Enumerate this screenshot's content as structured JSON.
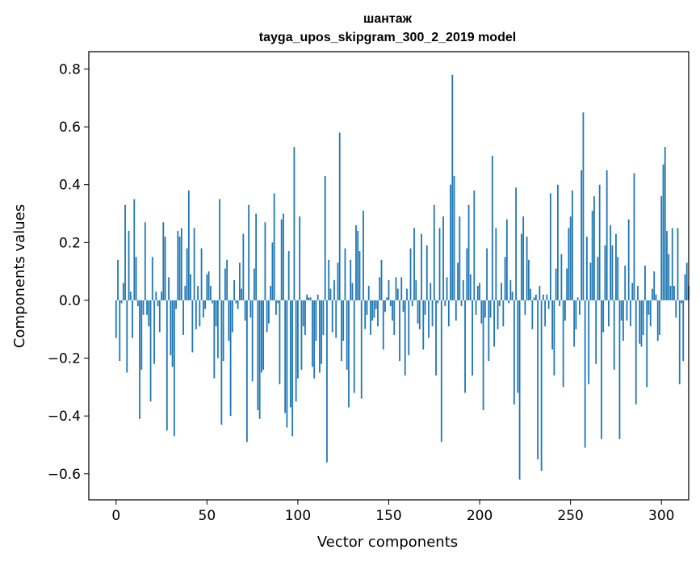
{
  "chart_data": {
    "type": "bar",
    "title": "шантаж",
    "subtitle": "tayga_upos_skipgram_300_2_2019 model",
    "xlabel": "Vector components",
    "ylabel": "Components values",
    "xlim": [
      -15,
      315
    ],
    "ylim": [
      -0.69,
      0.86
    ],
    "xticks": [
      0,
      50,
      100,
      150,
      200,
      250,
      300
    ],
    "yticks": [
      -0.6,
      -0.4,
      -0.2,
      0.0,
      0.2,
      0.4,
      0.6,
      0.8
    ],
    "ytick_labels": [
      "−0.6",
      "−0.4",
      "−0.2",
      "0.0",
      "0.2",
      "0.4",
      "0.6",
      "0.8"
    ],
    "bar_color": "#1f77b4",
    "grid": false,
    "values": [
      -0.13,
      0.14,
      -0.21,
      -0.01,
      0.06,
      0.33,
      -0.25,
      0.24,
      0.03,
      -0.13,
      0.35,
      0.15,
      -0.02,
      -0.41,
      -0.24,
      -0.05,
      0.27,
      -0.05,
      -0.09,
      -0.35,
      0.15,
      -0.22,
      0.03,
      -0.02,
      -0.11,
      0.03,
      0.27,
      0.22,
      -0.45,
      0.08,
      -0.19,
      -0.23,
      -0.47,
      -0.03,
      0.24,
      0.22,
      0.25,
      -0.12,
      0.05,
      0.18,
      0.38,
      0.09,
      -0.18,
      0.25,
      -0.1,
      0.05,
      -0.09,
      0.18,
      -0.06,
      -0.03,
      0.09,
      0.1,
      0.05,
      -0.01,
      -0.27,
      -0.09,
      -0.2,
      0.35,
      -0.43,
      -0.21,
      0.11,
      0.14,
      -0.14,
      -0.4,
      -0.11,
      0.07,
      -0.01,
      -0.03,
      0.13,
      0.04,
      0.23,
      -0.07,
      -0.49,
      0.33,
      -0.06,
      -0.28,
      0.11,
      0.3,
      -0.38,
      -0.41,
      -0.25,
      -0.24,
      0.27,
      -0.11,
      -0.08,
      0.05,
      0.2,
      0.37,
      -0.05,
      -0.01,
      -0.29,
      0.28,
      0.3,
      -0.39,
      -0.44,
      0.17,
      -0.37,
      -0.47,
      0.53,
      -0.35,
      -0.27,
      0.29,
      -0.24,
      -0.09,
      -0.12,
      0.02,
      0.01,
      0.01,
      -0.23,
      -0.27,
      -0.14,
      0.02,
      -0.25,
      -0.22,
      -0.12,
      0.43,
      -0.56,
      0.14,
      0.04,
      -0.11,
      0.07,
      -0.13,
      0.13,
      0.58,
      -0.21,
      -0.14,
      0.18,
      -0.24,
      -0.37,
      0.14,
      0.06,
      -0.32,
      0.26,
      0.24,
      0.17,
      -0.34,
      0.31,
      -0.1,
      -0.05,
      0.05,
      -0.12,
      -0.07,
      -0.06,
      -0.03,
      -0.09,
      0.08,
      0.14,
      -0.17,
      -0.04,
      0.01,
      0.07,
      -0.02,
      -0.07,
      -0.12,
      0.08,
      0.04,
      -0.21,
      0.08,
      -0.04,
      -0.26,
      0.04,
      -0.19,
      0.18,
      -0.02,
      0.25,
      0.07,
      -0.08,
      -0.1,
      0.23,
      -0.17,
      -0.05,
      0.19,
      -0.13,
      0.06,
      -0.09,
      0.33,
      -0.26,
      -0.01,
      0.25,
      -0.49,
      0.29,
      -0.02,
      0.08,
      -0.09,
      0.4,
      0.78,
      0.43,
      -0.07,
      0.13,
      0.29,
      -0.02,
      0.07,
      -0.32,
      0.18,
      0.33,
      0.09,
      -0.26,
      0.38,
      -0.05,
      0.05,
      0.06,
      -0.08,
      -0.38,
      -0.06,
      0.18,
      -0.21,
      -0.06,
      0.5,
      -0.16,
      0.25,
      -0.1,
      -0.02,
      0.06,
      -0.09,
      0.15,
      0.28,
      -0.01,
      0.07,
      0.03,
      -0.36,
      0.39,
      -0.32,
      -0.62,
      0.23,
      0.29,
      -0.05,
      0.22,
      0.14,
      0.04,
      -0.1,
      0.01,
      0.02,
      -0.55,
      0.05,
      -0.59,
      0.02,
      -0.09,
      0.02,
      -0.03,
      0.37,
      -0.17,
      -0.26,
      0.11,
      0.4,
      -0.02,
      0.16,
      -0.3,
      -0.07,
      0.11,
      0.25,
      0.29,
      0.38,
      -0.16,
      -0.1,
      0.01,
      -0.05,
      0.45,
      0.65,
      -0.51,
      0.22,
      -0.29,
      0.13,
      0.31,
      0.36,
      -0.22,
      0.15,
      0.4,
      -0.48,
      -0.11,
      0.19,
      0.45,
      -0.09,
      0.26,
      0.19,
      -0.24,
      0.23,
      0.15,
      -0.48,
      -0.07,
      -0.14,
      0.12,
      -0.07,
      0.28,
      -0.09,
      0.06,
      0.44,
      -0.36,
      0.05,
      -0.15,
      -0.16,
      -0.12,
      0.12,
      -0.3,
      -0.05,
      -0.09,
      0.04,
      0.1,
      0.02,
      -0.14,
      -0.12,
      0.36,
      0.47,
      0.53,
      0.24,
      0.16,
      0.05,
      0.25,
      0.05,
      -0.06,
      0.25,
      -0.29,
      -0.01,
      -0.21,
      0.09,
      0.13,
      0.05
    ]
  }
}
